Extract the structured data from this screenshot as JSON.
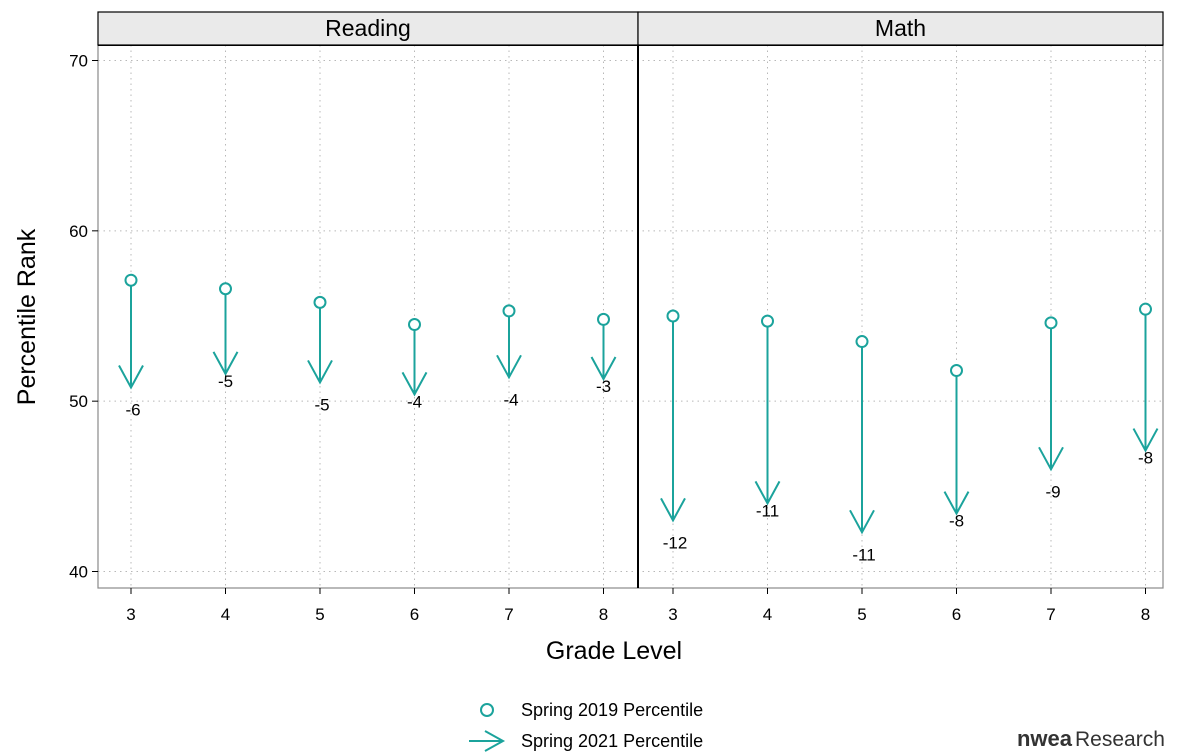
{
  "chart_data": {
    "type": "scatter",
    "ylabel": "Percentile Rank",
    "xlabel": "Grade Level",
    "ylim": [
      40,
      70
    ],
    "yticks": [
      40,
      50,
      60,
      70
    ],
    "grid": true,
    "legend_position": "bottom-center",
    "colors": {
      "series": "#1BA39C"
    },
    "panels": [
      {
        "name": "Reading",
        "categories": [
          "3",
          "4",
          "5",
          "6",
          "7",
          "8"
        ],
        "series": [
          {
            "name": "Spring 2019 Percentile",
            "values": [
              57.1,
              56.6,
              55.8,
              54.5,
              55.3,
              54.8
            ]
          },
          {
            "name": "Spring 2021 Percentile",
            "values": [
              50.8,
              51.6,
              51.1,
              50.4,
              51.4,
              51.3
            ]
          }
        ],
        "change_labels": [
          "-6",
          "-5",
          "-5",
          "-4",
          "-4",
          "-3"
        ]
      },
      {
        "name": "Math",
        "categories": [
          "3",
          "4",
          "5",
          "6",
          "7",
          "8"
        ],
        "series": [
          {
            "name": "Spring 2019 Percentile",
            "values": [
              55.0,
              54.7,
              53.5,
              51.8,
              54.6,
              55.4
            ]
          },
          {
            "name": "Spring 2021 Percentile",
            "values": [
              43.0,
              44.0,
              42.3,
              43.4,
              46.0,
              47.1
            ]
          }
        ],
        "change_labels": [
          "-12",
          "-11",
          "-11",
          "-8",
          "-9",
          "-8"
        ]
      }
    ],
    "legend": [
      {
        "name": "Spring 2019 Percentile",
        "marker": "circle"
      },
      {
        "name": "Spring 2021 Percentile",
        "marker": "arrow"
      }
    ]
  },
  "brand": {
    "logo_bold": "nwea",
    "logo_regular": "Research",
    "logo_color": "#333333"
  }
}
